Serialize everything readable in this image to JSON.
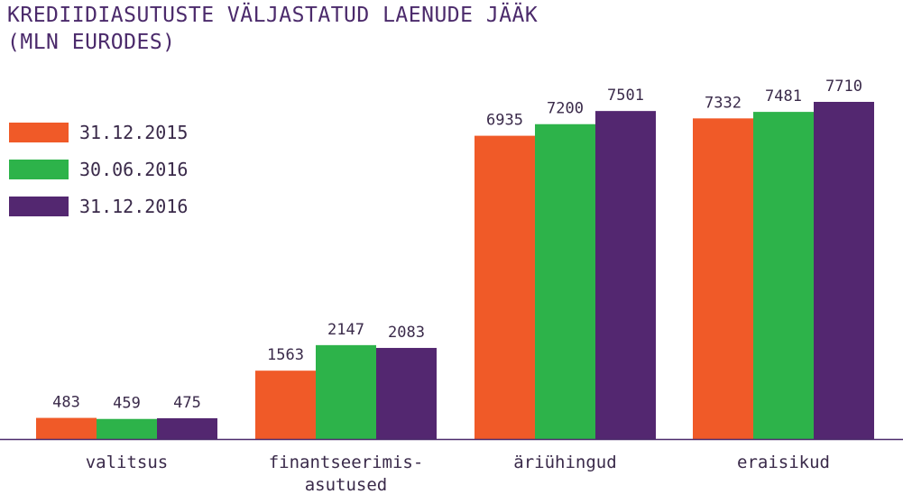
{
  "title_lines": [
    "KREDIIDIASUTUSTE VÄLJASTATUD LAENUDE JÄÄK",
    "(MLN EURODES)"
  ],
  "chart_data": {
    "type": "bar",
    "categories": [
      [
        "valitsus"
      ],
      [
        "finantseerimis-",
        "asutused"
      ],
      [
        "äriühingud"
      ],
      [
        "eraisikud"
      ]
    ],
    "series": [
      {
        "name": "31.12.2015",
        "color": "#f05a28",
        "values": [
          483,
          1563,
          6935,
          7332
        ]
      },
      {
        "name": "30.06.2016",
        "color": "#2db34a",
        "values": [
          459,
          2147,
          7200,
          7481
        ]
      },
      {
        "name": "31.12.2016",
        "color": "#532770",
        "values": [
          475,
          2083,
          7501,
          7710
        ]
      }
    ],
    "ylim": [
      0,
      8000
    ],
    "grid": false,
    "legend_position": "left"
  }
}
